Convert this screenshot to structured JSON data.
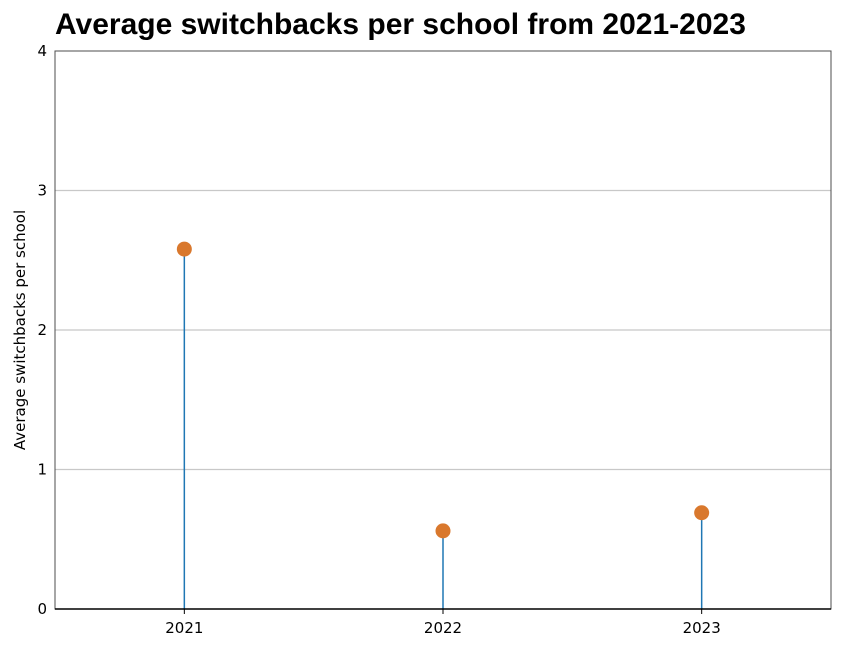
{
  "chart_data": {
    "type": "lollipop",
    "title": "Average switchbacks per school from 2021-2023",
    "xlabel": "",
    "ylabel": "Average switchbacks per school",
    "categories": [
      "2021",
      "2022",
      "2023"
    ],
    "values": [
      2.58,
      0.56,
      0.69
    ],
    "ylim": [
      0,
      4
    ],
    "yticks": [
      "0",
      "1",
      "2",
      "3",
      "4"
    ],
    "grid": true,
    "legend": "none",
    "colors": {
      "stem": "#1f77b4",
      "marker": "#d9782d",
      "grid": "#c8c8c8",
      "frame": "#4d4d4d"
    }
  }
}
